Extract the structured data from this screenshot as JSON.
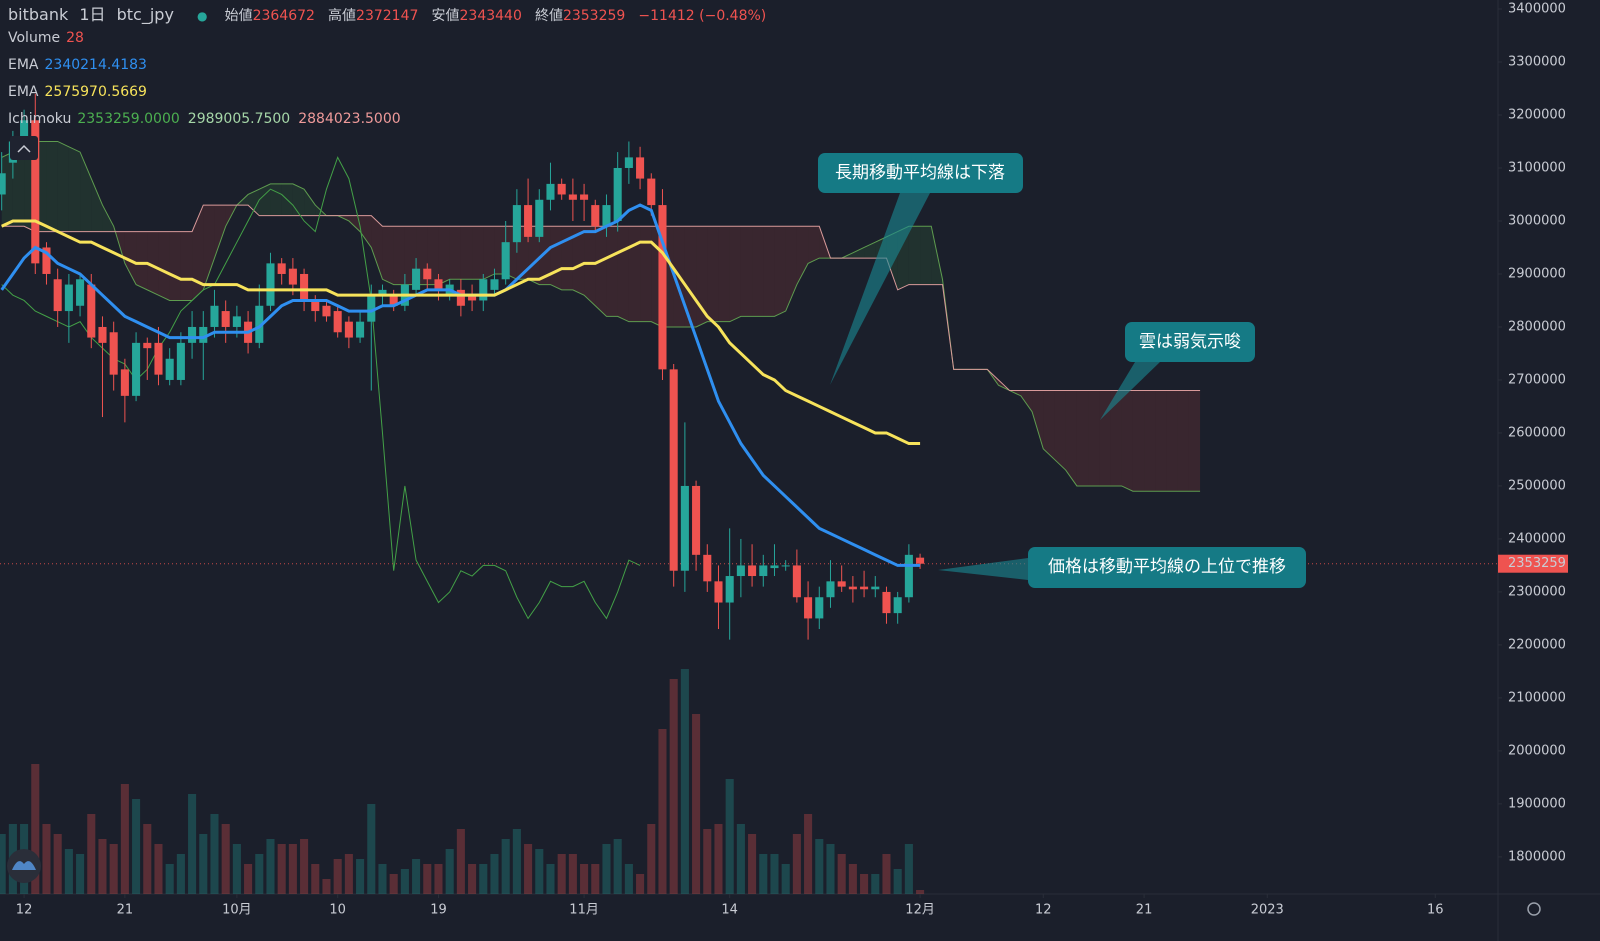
{
  "chart_data": {
    "type": "candlestick",
    "legend": {
      "exchange": "bitbank",
      "interval": "1日",
      "symbol": "btc_jpy",
      "open_label": "始値",
      "high_label": "高値",
      "low_label": "安値",
      "close_label": "終値",
      "change": "−11412 (−0.48%)",
      "header_value_color": "#ef5350",
      "indicators": [
        {
          "name": "Volume",
          "colors": [
            "#ef5350"
          ]
        },
        {
          "name": "EMA",
          "readings": [
            "2340214.4183"
          ],
          "colors": [
            "#2f8ff0"
          ]
        },
        {
          "name": "EMA",
          "readings": [
            "2575970.5669"
          ],
          "colors": [
            "#f7e35b"
          ]
        },
        {
          "name": "Ichimoku",
          "readings": [
            "2353259.0000",
            "2989005.7500",
            "2884023.5000"
          ],
          "colors": [
            "#4caf50",
            "#a5d6a7",
            "#ef9a9a"
          ]
        }
      ]
    },
    "annotations": [
      "長期移動平均線は下落",
      "雲は弱気示唆",
      "価格は移動平均線の上位で推移"
    ],
    "xlim": [
      -0.15,
      133.6
    ],
    "xticks": [
      {
        "value": 2,
        "label": "12"
      },
      {
        "value": 11,
        "label": "21"
      },
      {
        "value": 21,
        "label": "10月"
      },
      {
        "value": 30,
        "label": "10"
      },
      {
        "value": 39,
        "label": "19"
      },
      {
        "value": 52,
        "label": "11月"
      },
      {
        "value": 65,
        "label": "14"
      },
      {
        "value": 82,
        "label": "12月"
      },
      {
        "value": 93,
        "label": "12"
      },
      {
        "value": 102,
        "label": "21"
      },
      {
        "value": 113,
        "label": "2023"
      },
      {
        "value": 128,
        "label": "16"
      }
    ],
    "ylim": [
      1730000,
      3400000
    ],
    "yticks": [
      3400000,
      3300000,
      3200000,
      3100000,
      3000000,
      2900000,
      2800000,
      2700000,
      2600000,
      2500000,
      2400000,
      2300000,
      2200000,
      2100000,
      2000000,
      1900000,
      1800000
    ],
    "last_price_color": "#ef5350",
    "candles": {
      "up_color": "#26a69a",
      "down_color": "#ef5350",
      "open": [
        3050000,
        3110000,
        3150000,
        3190000,
        2950000,
        2890000,
        2830000,
        2840000,
        2880000,
        2800000,
        2790000,
        2720000,
        2670000,
        2770000,
        2770000,
        2700000,
        2700000,
        2770000,
        2770000,
        2800000,
        2830000,
        2800000,
        2810000,
        2770000,
        2840000,
        2920000,
        2910000,
        2900000,
        2850000,
        2840000,
        2830000,
        2810000,
        2780000,
        2810000,
        2860000,
        2860000,
        2840000,
        2870000,
        2910000,
        2890000,
        2860000,
        2870000,
        2860000,
        2850000,
        2870000,
        2890000,
        2960000,
        3030000,
        2970000,
        3040000,
        3070000,
        3050000,
        3050000,
        3030000,
        2990000,
        3000000,
        3100000,
        3120000,
        3080000,
        3030000,
        2720000,
        2340000,
        2500000,
        2370000,
        2320000,
        2280000,
        2330000,
        2350000,
        2330000,
        2345000,
        2350000,
        2350000,
        2290000,
        2250000,
        2290000,
        2320000,
        2310000,
        2310000,
        2305000,
        2300000,
        2260000,
        2290000,
        2364672
      ],
      "high": [
        3130000,
        3170000,
        3210000,
        3240000,
        2960000,
        2910000,
        2900000,
        2900000,
        2900000,
        2820000,
        2810000,
        2740000,
        2790000,
        2780000,
        2800000,
        2760000,
        2790000,
        2830000,
        2830000,
        2870000,
        2850000,
        2840000,
        2830000,
        2880000,
        2940000,
        2930000,
        2930000,
        2910000,
        2860000,
        2850000,
        2840000,
        2820000,
        2830000,
        2880000,
        2880000,
        2870000,
        2900000,
        2930000,
        2920000,
        2900000,
        2890000,
        2890000,
        2880000,
        2900000,
        2910000,
        3000000,
        3060000,
        3080000,
        3060000,
        3110000,
        3080000,
        3080000,
        3070000,
        3040000,
        3050000,
        3130000,
        3150000,
        3140000,
        3090000,
        3060000,
        2730000,
        2620000,
        2510000,
        2390000,
        2350000,
        2420000,
        2400000,
        2390000,
        2370000,
        2390000,
        2360000,
        2380000,
        2320000,
        2310000,
        2360000,
        2350000,
        2330000,
        2340000,
        2330000,
        2310000,
        2300000,
        2390000,
        2372147
      ],
      "low": [
        3020000,
        3080000,
        3120000,
        2900000,
        2880000,
        2800000,
        2770000,
        2820000,
        2760000,
        2630000,
        2680000,
        2620000,
        2660000,
        2700000,
        2690000,
        2690000,
        2690000,
        2740000,
        2700000,
        2780000,
        2770000,
        2780000,
        2750000,
        2760000,
        2830000,
        2880000,
        2860000,
        2830000,
        2810000,
        2810000,
        2780000,
        2760000,
        2770000,
        2680000,
        2840000,
        2830000,
        2830000,
        2860000,
        2870000,
        2850000,
        2850000,
        2820000,
        2830000,
        2830000,
        2860000,
        2880000,
        2940000,
        2960000,
        2960000,
        3020000,
        3040000,
        3000000,
        3000000,
        2980000,
        2970000,
        2980000,
        3070000,
        3060000,
        3010000,
        2700000,
        2310000,
        2300000,
        2340000,
        2300000,
        2230000,
        2210000,
        2290000,
        2310000,
        2310000,
        2330000,
        2340000,
        2280000,
        2210000,
        2230000,
        2270000,
        2300000,
        2280000,
        2290000,
        2290000,
        2240000,
        2240000,
        2280000,
        2343440
      ],
      "close": [
        3090000,
        3150000,
        3190000,
        2920000,
        2900000,
        2830000,
        2880000,
        2890000,
        2780000,
        2770000,
        2710000,
        2670000,
        2770000,
        2760000,
        2710000,
        2740000,
        2770000,
        2800000,
        2800000,
        2840000,
        2800000,
        2820000,
        2770000,
        2840000,
        2920000,
        2900000,
        2880000,
        2850000,
        2830000,
        2820000,
        2790000,
        2780000,
        2810000,
        2860000,
        2870000,
        2840000,
        2880000,
        2910000,
        2890000,
        2870000,
        2880000,
        2840000,
        2850000,
        2890000,
        2890000,
        2960000,
        3030000,
        2970000,
        3040000,
        3070000,
        3050000,
        3040000,
        3040000,
        2990000,
        3030000,
        3100000,
        3120000,
        3080000,
        3030000,
        2720000,
        2340000,
        2500000,
        2370000,
        2320000,
        2280000,
        2330000,
        2350000,
        2330000,
        2350000,
        2350000,
        2350000,
        2290000,
        2250000,
        2290000,
        2320000,
        2310000,
        2305000,
        2305000,
        2310000,
        2260000,
        2290000,
        2370000,
        2353259
      ]
    },
    "volume": {
      "ylim": [
        0,
        2100
      ],
      "values": [
        420,
        490,
        490,
        910,
        490,
        420,
        315,
        280,
        560,
        385,
        350,
        770,
        665,
        490,
        350,
        210,
        280,
        700,
        420,
        560,
        490,
        350,
        210,
        280,
        385,
        350,
        350,
        385,
        210,
        105,
        245,
        280,
        245,
        630,
        210,
        140,
        175,
        245,
        210,
        210,
        315,
        455,
        210,
        210,
        280,
        385,
        455,
        350,
        315,
        210,
        280,
        280,
        210,
        210,
        350,
        385,
        210,
        140,
        490,
        1155,
        1505,
        1575,
        1260,
        455,
        490,
        805,
        490,
        420,
        280,
        280,
        210,
        420,
        560,
        385,
        350,
        280,
        210,
        140,
        140,
        280,
        175,
        350,
        28
      ]
    },
    "ema": [
      {
        "color": "#2f8ff0",
        "values": [
          2870000,
          2900000,
          2930000,
          2950000,
          2940000,
          2920000,
          2910000,
          2900000,
          2880000,
          2860000,
          2840000,
          2820000,
          2810000,
          2800000,
          2790000,
          2780000,
          2780000,
          2780000,
          2780000,
          2790000,
          2790000,
          2790000,
          2790000,
          2800000,
          2820000,
          2840000,
          2850000,
          2850000,
          2850000,
          2850000,
          2840000,
          2830000,
          2830000,
          2830000,
          2840000,
          2840000,
          2850000,
          2860000,
          2870000,
          2870000,
          2870000,
          2860000,
          2860000,
          2860000,
          2860000,
          2870000,
          2890000,
          2910000,
          2930000,
          2950000,
          2960000,
          2970000,
          2980000,
          2980000,
          2990000,
          3000000,
          3020000,
          3030000,
          3020000,
          2960000,
          2900000,
          2840000,
          2780000,
          2720000,
          2660000,
          2620000,
          2580000,
          2550000,
          2520000,
          2500000,
          2480000,
          2460000,
          2440000,
          2420000,
          2410000,
          2400000,
          2390000,
          2380000,
          2370000,
          2360000,
          2350000,
          2350000,
          2350000
        ]
      },
      {
        "color": "#f7e35b",
        "values": [
          2990000,
          3000000,
          3000000,
          3000000,
          2990000,
          2980000,
          2970000,
          2960000,
          2960000,
          2950000,
          2940000,
          2930000,
          2920000,
          2920000,
          2910000,
          2900000,
          2890000,
          2890000,
          2880000,
          2880000,
          2880000,
          2880000,
          2870000,
          2870000,
          2870000,
          2870000,
          2870000,
          2870000,
          2870000,
          2870000,
          2860000,
          2860000,
          2860000,
          2860000,
          2860000,
          2860000,
          2860000,
          2860000,
          2860000,
          2860000,
          2860000,
          2860000,
          2860000,
          2860000,
          2860000,
          2870000,
          2880000,
          2890000,
          2890000,
          2900000,
          2910000,
          2910000,
          2920000,
          2920000,
          2930000,
          2940000,
          2950000,
          2960000,
          2960000,
          2940000,
          2910000,
          2880000,
          2850000,
          2820000,
          2800000,
          2770000,
          2750000,
          2730000,
          2710000,
          2700000,
          2680000,
          2670000,
          2660000,
          2650000,
          2640000,
          2630000,
          2620000,
          2610000,
          2600000,
          2600000,
          2590000,
          2580000,
          2580000
        ]
      }
    ],
    "ichimoku": {
      "bull_fill": "rgba(76,175,80,0.13)",
      "bear_fill": "rgba(239,83,80,0.14)",
      "span_a": {
        "color": "#5e9c4f",
        "values": [
          3120000,
          3130000,
          3140000,
          3150000,
          3150000,
          3150000,
          3140000,
          3130000,
          3080000,
          3030000,
          2990000,
          2920000,
          2880000,
          2870000,
          2860000,
          2850000,
          2850000,
          2850000,
          2870000,
          2930000,
          2990000,
          3030000,
          3050000,
          3060000,
          3070000,
          3070000,
          3070000,
          3060000,
          3030000,
          3010000,
          3010000,
          3000000,
          2980000,
          2950000,
          2890000,
          2880000,
          2880000,
          2880000,
          2880000,
          2880000,
          2890000,
          2890000,
          2890000,
          2890000,
          2900000,
          2900000,
          2890000,
          2890000,
          2880000,
          2880000,
          2870000,
          2870000,
          2860000,
          2840000,
          2820000,
          2820000,
          2810000,
          2810000,
          2810000,
          2800000,
          2800000,
          2800000,
          2800000,
          2810000,
          2810000,
          2810000,
          2820000,
          2820000,
          2820000,
          2820000,
          2830000,
          2880000,
          2920000,
          2930000,
          2930000,
          2930000,
          2940000,
          2950000,
          2960000,
          2970000,
          2980000,
          2990000,
          2990000,
          2990000,
          2890000,
          2720000,
          2720000,
          2720000,
          2720000,
          2690000,
          2680000,
          2670000,
          2640000,
          2570000,
          2550000,
          2530000,
          2500000,
          2500000,
          2500000,
          2500000,
          2500000,
          2490000,
          2490000,
          2490000,
          2490000,
          2490000,
          2490000,
          2490000
        ]
      },
      "span_b": {
        "color": "#d99a9a",
        "values": [
          2990000,
          2990000,
          2990000,
          2980000,
          2980000,
          2980000,
          2980000,
          2980000,
          2980000,
          2980000,
          2980000,
          2980000,
          2980000,
          2980000,
          2980000,
          2980000,
          2980000,
          2980000,
          3030000,
          3030000,
          3030000,
          3030000,
          3030000,
          3010000,
          3010000,
          3010000,
          3010000,
          3010000,
          3010000,
          3010000,
          3010000,
          3010000,
          3010000,
          3010000,
          2990000,
          2990000,
          2990000,
          2990000,
          2990000,
          2990000,
          2990000,
          2990000,
          2990000,
          2990000,
          2990000,
          2990000,
          2990000,
          2990000,
          2990000,
          2990000,
          2990000,
          2990000,
          2990000,
          2990000,
          2990000,
          2990000,
          2990000,
          2990000,
          2990000,
          2990000,
          2990000,
          2990000,
          2990000,
          2990000,
          2990000,
          2990000,
          2990000,
          2990000,
          2990000,
          2990000,
          2990000,
          2990000,
          2990000,
          2990000,
          2930000,
          2930000,
          2930000,
          2930000,
          2930000,
          2930000,
          2870000,
          2880000,
          2880000,
          2880000,
          2880000,
          2720000,
          2720000,
          2720000,
          2720000,
          2700000,
          2680000,
          2680000,
          2680000,
          2680000,
          2680000,
          2680000,
          2680000,
          2680000,
          2680000,
          2680000,
          2680000,
          2680000,
          2680000,
          2680000,
          2680000,
          2680000,
          2680000,
          2680000
        ]
      },
      "lagging": {
        "color": "#43a047",
        "values": [
          2880000,
          2860000,
          2850000,
          2830000,
          2820000,
          2810000,
          2800000,
          2810000,
          2780000,
          2760000,
          2740000,
          2730000,
          2700000,
          2720000,
          2760000,
          2790000,
          2830000,
          2850000,
          2870000,
          2880000,
          2920000,
          2960000,
          3000000,
          3040000,
          3060000,
          3050000,
          3030000,
          3000000,
          2980000,
          3060000,
          3120000,
          3080000,
          2990000,
          2850000,
          2600000,
          2340000,
          2500000,
          2360000,
          2320000,
          2280000,
          2300000,
          2340000,
          2330000,
          2350000,
          2350000,
          2340000,
          2290000,
          2250000,
          2280000,
          2320000,
          2310000,
          2310000,
          2320000,
          2280000,
          2250000,
          2300000,
          2360000,
          2350000
        ]
      }
    }
  }
}
